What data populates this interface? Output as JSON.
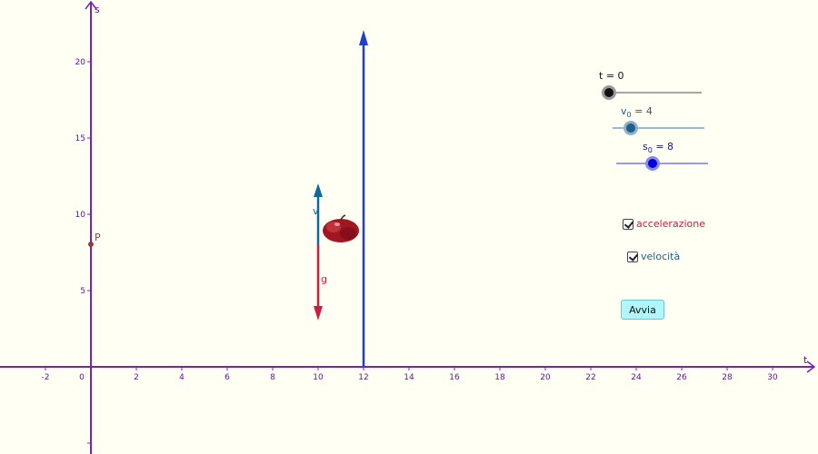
{
  "colors": {
    "axis": "#7a1fc2",
    "tick_text": "#6a0dad",
    "path": "#1f3fcc",
    "velocity": "#0e6a9a",
    "acceleration": "#cc1f3f",
    "point": "#a33b3b"
  },
  "axes": {
    "x_label": "t",
    "y_label": "s",
    "x_ticks": [
      "-2",
      "0",
      "2",
      "4",
      "6",
      "8",
      "10",
      "12",
      "14",
      "16",
      "18",
      "20",
      "22",
      "24",
      "26",
      "28",
      "30"
    ],
    "y_ticks": [
      "5",
      "10",
      "15",
      "20"
    ]
  },
  "point": {
    "label": "P",
    "t": 0,
    "s": 8
  },
  "vectors": {
    "velocity_label": "v",
    "acceleration_label": "g"
  },
  "icons": {
    "object": "apple-icon"
  },
  "sliders": {
    "t": {
      "name": "t",
      "value": "0",
      "fraction": 0.0
    },
    "v0": {
      "name": "v",
      "sub": "0",
      "value": "4",
      "fraction": 0.2
    },
    "s0": {
      "name": "s",
      "sub": "0",
      "value": "8",
      "fraction": 0.4
    }
  },
  "checkboxes": {
    "accelerazione": {
      "label": "accelerazione",
      "checked": true
    },
    "velocita": {
      "label": "velocità",
      "checked": true
    }
  },
  "button": {
    "label": "Avvia"
  }
}
